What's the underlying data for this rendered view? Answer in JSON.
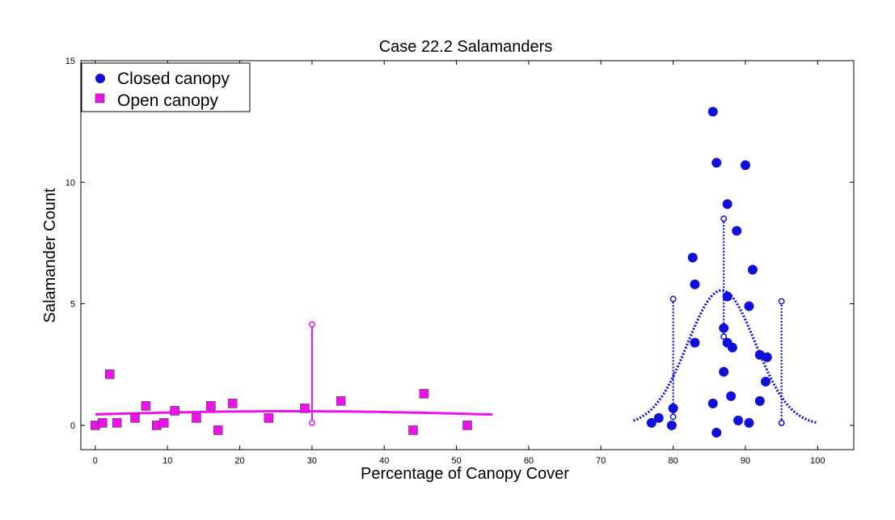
{
  "chart_data": {
    "type": "scatter",
    "title": "Case 22.2 Salamanders",
    "xlabel": "Percentage of Canopy Cover",
    "ylabel": "Salamander Count",
    "xlim": [
      -2,
      105
    ],
    "ylim": [
      -1,
      15
    ],
    "xticks": [
      0,
      10,
      20,
      30,
      40,
      50,
      60,
      70,
      80,
      90,
      100
    ],
    "yticks": [
      0,
      5,
      10,
      15
    ],
    "grid": false,
    "legend_position": "top-left",
    "colors": {
      "closed": "#1010d8",
      "open": "#ee11ee"
    },
    "series": [
      {
        "name": "Closed canopy",
        "marker": "circle",
        "points": [
          [
            85.5,
            12.9
          ],
          [
            86.0,
            10.8
          ],
          [
            90.0,
            10.7
          ],
          [
            87.5,
            9.1
          ],
          [
            88.8,
            8.0
          ],
          [
            82.7,
            6.9
          ],
          [
            91.0,
            6.4
          ],
          [
            83.0,
            5.8
          ],
          [
            87.5,
            5.3
          ],
          [
            90.5,
            4.9
          ],
          [
            87.0,
            4.0
          ],
          [
            83.0,
            3.4
          ],
          [
            87.5,
            3.4
          ],
          [
            88.2,
            3.2
          ],
          [
            92.0,
            2.9
          ],
          [
            93.0,
            2.8
          ],
          [
            87.0,
            2.2
          ],
          [
            92.8,
            1.8
          ],
          [
            88.0,
            1.2
          ],
          [
            92.0,
            1.0
          ],
          [
            85.5,
            0.9
          ],
          [
            80.0,
            0.7
          ],
          [
            78.0,
            0.3
          ],
          [
            89.0,
            0.2
          ],
          [
            90.5,
            0.1
          ],
          [
            77.0,
            0.1
          ],
          [
            79.8,
            0.0
          ],
          [
            86.0,
            -0.3
          ]
        ]
      },
      {
        "name": "Open canopy",
        "marker": "square",
        "points": [
          [
            0,
            0.0
          ],
          [
            1.0,
            0.1
          ],
          [
            2.0,
            2.1
          ],
          [
            3.0,
            0.1
          ],
          [
            5.5,
            0.3
          ],
          [
            7.0,
            0.8
          ],
          [
            8.5,
            0.0
          ],
          [
            9.5,
            0.1
          ],
          [
            11.0,
            0.6
          ],
          [
            14.0,
            0.3
          ],
          [
            16.0,
            0.8
          ],
          [
            17.0,
            -0.2
          ],
          [
            19.0,
            0.9
          ],
          [
            24.0,
            0.3
          ],
          [
            29.0,
            0.7
          ],
          [
            34.0,
            1.0
          ],
          [
            44.0,
            -0.2
          ],
          [
            45.5,
            1.3
          ],
          [
            51.5,
            0.0
          ]
        ]
      }
    ],
    "fit_curves": [
      {
        "for": "Closed canopy",
        "form": "gaussian",
        "amplitude": 5.55,
        "center": 86.7,
        "sigma": 4.7,
        "x_range": [
          74.5,
          100
        ],
        "style": "dotted"
      },
      {
        "for": "Open canopy",
        "form": "gaussian",
        "amplitude": 0.58,
        "center": 27,
        "sigma": 38,
        "x_range": [
          0,
          55
        ],
        "style": "solid"
      }
    ],
    "reference_lines": [
      {
        "for": "Closed canopy",
        "x": 80,
        "y_range": [
          0.35,
          5.2
        ],
        "style": "dotted"
      },
      {
        "for": "Closed canopy",
        "x": 87,
        "y_range": [
          3.65,
          8.5
        ],
        "style": "dotted"
      },
      {
        "for": "Closed canopy",
        "x": 95,
        "y_range": [
          0.1,
          5.1
        ],
        "style": "dotted"
      },
      {
        "for": "Open canopy",
        "x": 30,
        "y_range": [
          0.1,
          4.15
        ],
        "style": "solid"
      }
    ]
  }
}
